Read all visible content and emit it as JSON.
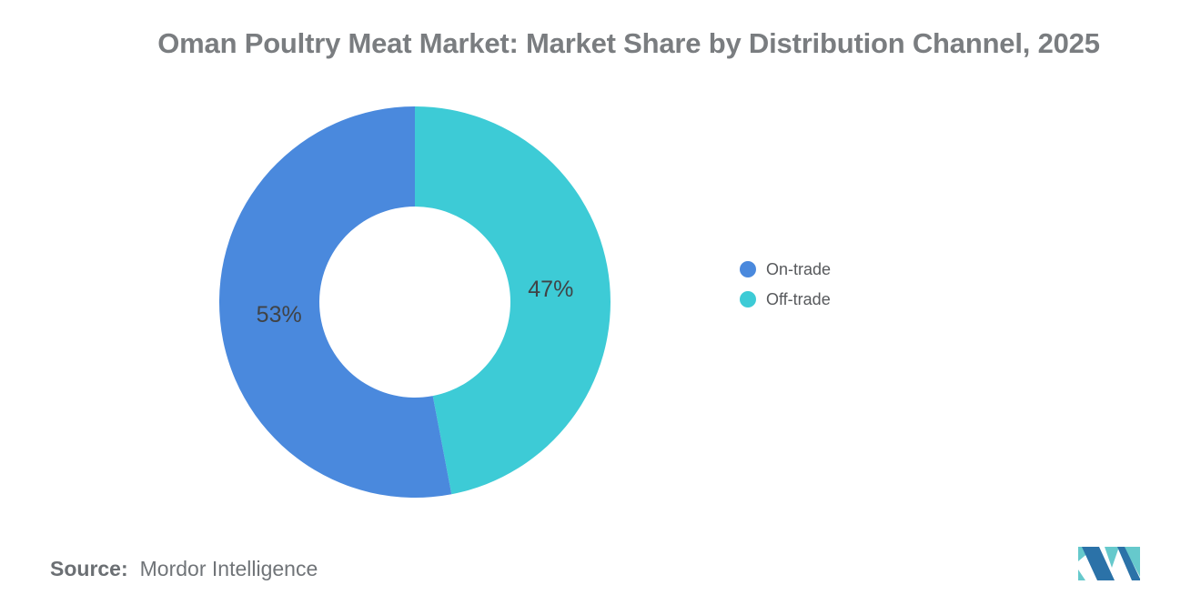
{
  "title": "Oman Poultry Meat Market: Market Share by Distribution Channel, 2025",
  "chart_data": {
    "type": "pie",
    "subtype": "donut",
    "title": "Oman Poultry Meat Market: Market Share by Distribution Channel, 2025",
    "unit": "%",
    "series": [
      {
        "name": "On-trade",
        "value": 53,
        "label": "53%",
        "color": "#4A89DD"
      },
      {
        "name": "Off-trade",
        "value": 47,
        "label": "47%",
        "color": "#3DCBD6"
      }
    ],
    "legend_position": "right",
    "donut_hole_ratio": 0.49,
    "start_position": "top",
    "first_slice_side": "left"
  },
  "source": {
    "label": "Source:",
    "value": "Mordor Intelligence"
  },
  "logo": {
    "name": "mordor-intelligence-logo",
    "colors": {
      "blue": "#2B72A8",
      "teal": "#66C9CC"
    }
  }
}
